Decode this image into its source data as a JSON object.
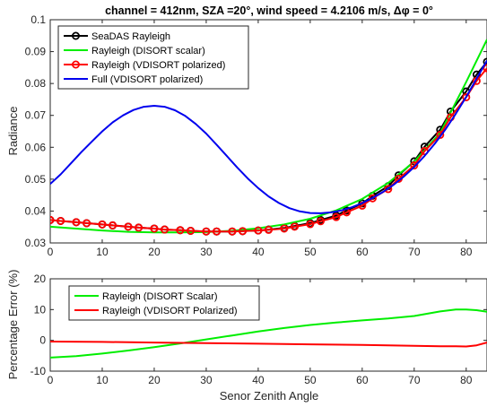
{
  "chart_data": [
    {
      "type": "line",
      "title": "channel = 412nm, SZA =20°,  wind speed = 4.2106 m/s,  Δφ = 0°",
      "xlabel": "",
      "ylabel": "Radiance",
      "xlim": [
        0,
        84
      ],
      "ylim": [
        0.03,
        0.1
      ],
      "xticks": [
        "0",
        "10",
        "20",
        "30",
        "40",
        "50",
        "60",
        "70",
        "80"
      ],
      "yticks": [
        "0.03",
        "0.04",
        "0.05",
        "0.06",
        "0.07",
        "0.08",
        "0.09",
        "0.1"
      ],
      "grid": false,
      "legend_position": "top-left",
      "series": [
        {
          "name": "SeaDAS Rayleigh",
          "color": "#000000",
          "marker": "circle-open",
          "x": [
            0,
            2,
            5,
            7,
            10,
            12,
            15,
            17,
            20,
            22,
            25,
            27,
            30,
            32,
            35,
            37,
            40,
            42,
            45,
            47,
            50,
            52,
            55,
            57,
            60,
            62,
            65,
            67,
            70,
            72,
            75,
            77,
            80,
            82,
            84
          ],
          "y": [
            0.0372,
            0.0369,
            0.0365,
            0.0362,
            0.0358,
            0.0355,
            0.0351,
            0.0348,
            0.0345,
            0.0342,
            0.034,
            0.0338,
            0.0336,
            0.0336,
            0.0336,
            0.0337,
            0.0339,
            0.0342,
            0.0347,
            0.0353,
            0.0362,
            0.0372,
            0.0386,
            0.0402,
            0.0424,
            0.0448,
            0.0478,
            0.0512,
            0.0556,
            0.0602,
            0.0655,
            0.0712,
            0.0775,
            0.0828,
            0.0868
          ]
        },
        {
          "name": "Rayleigh (DISORT scalar)",
          "color": "#00ee00",
          "marker": "none",
          "x": [
            0,
            5,
            10,
            15,
            20,
            25,
            30,
            35,
            40,
            45,
            50,
            55,
            60,
            65,
            70,
            75,
            80,
            84
          ],
          "y": [
            0.0351,
            0.0345,
            0.0339,
            0.0335,
            0.0333,
            0.0333,
            0.0334,
            0.0338,
            0.0346,
            0.0358,
            0.0376,
            0.0402,
            0.0438,
            0.0488,
            0.0555,
            0.0645,
            0.0805,
            0.0938
          ]
        },
        {
          "name": "Rayleigh (VDISORT polarized)",
          "color": "#ff0000",
          "marker": "circle-open",
          "x": [
            0,
            2,
            5,
            7,
            10,
            12,
            15,
            17,
            20,
            22,
            25,
            27,
            30,
            32,
            35,
            37,
            40,
            42,
            45,
            47,
            50,
            52,
            55,
            57,
            60,
            62,
            65,
            67,
            70,
            72,
            75,
            77,
            80,
            82,
            84
          ],
          "y": [
            0.0372,
            0.0369,
            0.0365,
            0.0362,
            0.0358,
            0.0355,
            0.0351,
            0.0348,
            0.0345,
            0.0342,
            0.034,
            0.0338,
            0.0336,
            0.0336,
            0.0336,
            0.0337,
            0.0339,
            0.0341,
            0.0345,
            0.0351,
            0.0359,
            0.0368,
            0.0381,
            0.0396,
            0.0417,
            0.044,
            0.0469,
            0.0501,
            0.0543,
            0.0588,
            0.0639,
            0.0694,
            0.0757,
            0.0808,
            0.0848
          ]
        },
        {
          "name": "Full (VDISORT polarized)",
          "color": "#0000ee",
          "marker": "none",
          "x": [
            0,
            2,
            4,
            6,
            8,
            10,
            12,
            14,
            16,
            18,
            20,
            22,
            24,
            26,
            28,
            30,
            32,
            34,
            36,
            38,
            40,
            42,
            44,
            46,
            48,
            50,
            52,
            54,
            56,
            58,
            60,
            62,
            64,
            66,
            68,
            70,
            72,
            74,
            76,
            78,
            80,
            82,
            84
          ],
          "y": [
            0.0485,
            0.0515,
            0.055,
            0.0585,
            0.0618,
            0.065,
            0.0678,
            0.07,
            0.0717,
            0.0727,
            0.073,
            0.0727,
            0.0716,
            0.0698,
            0.0673,
            0.0643,
            0.0608,
            0.0572,
            0.0536,
            0.0502,
            0.0472,
            0.0446,
            0.0425,
            0.0409,
            0.0399,
            0.0394,
            0.0393,
            0.0396,
            0.0402,
            0.0412,
            0.0425,
            0.0441,
            0.046,
            0.0482,
            0.0508,
            0.0538,
            0.0573,
            0.0612,
            0.0656,
            0.0705,
            0.0758,
            0.0815,
            0.0872
          ]
        }
      ]
    },
    {
      "type": "line",
      "title": "",
      "xlabel": "Senor Zenith Angle",
      "ylabel": "Percentage Error (%)",
      "xlim": [
        0,
        84
      ],
      "ylim": [
        -10,
        20
      ],
      "xticks": [
        "0",
        "10",
        "20",
        "30",
        "40",
        "50",
        "60",
        "70",
        "80"
      ],
      "yticks": [
        "-10",
        "0",
        "10",
        "20"
      ],
      "grid": false,
      "legend_position": "top-left",
      "series": [
        {
          "name": "Rayleigh (DISORT Scalar)",
          "color": "#00ee00",
          "x": [
            0,
            5,
            10,
            15,
            20,
            25,
            30,
            35,
            40,
            45,
            50,
            55,
            60,
            65,
            70,
            75,
            78,
            80,
            82,
            84
          ],
          "y": [
            -5.6,
            -5.1,
            -4.3,
            -3.3,
            -2.2,
            -1.0,
            0.3,
            1.6,
            2.9,
            4.0,
            5.0,
            5.8,
            6.5,
            7.1,
            7.9,
            9.4,
            10.0,
            10.0,
            9.8,
            9.3
          ]
        },
        {
          "name": "Rayleigh (VDISORT Polarized)",
          "color": "#ff0000",
          "x": [
            0,
            10,
            20,
            30,
            40,
            50,
            60,
            70,
            75,
            78,
            80,
            82,
            84
          ],
          "y": [
            -0.4,
            -0.5,
            -0.7,
            -0.9,
            -1.1,
            -1.3,
            -1.5,
            -1.8,
            -1.9,
            -1.9,
            -2.0,
            -1.6,
            -0.7
          ]
        }
      ]
    }
  ]
}
